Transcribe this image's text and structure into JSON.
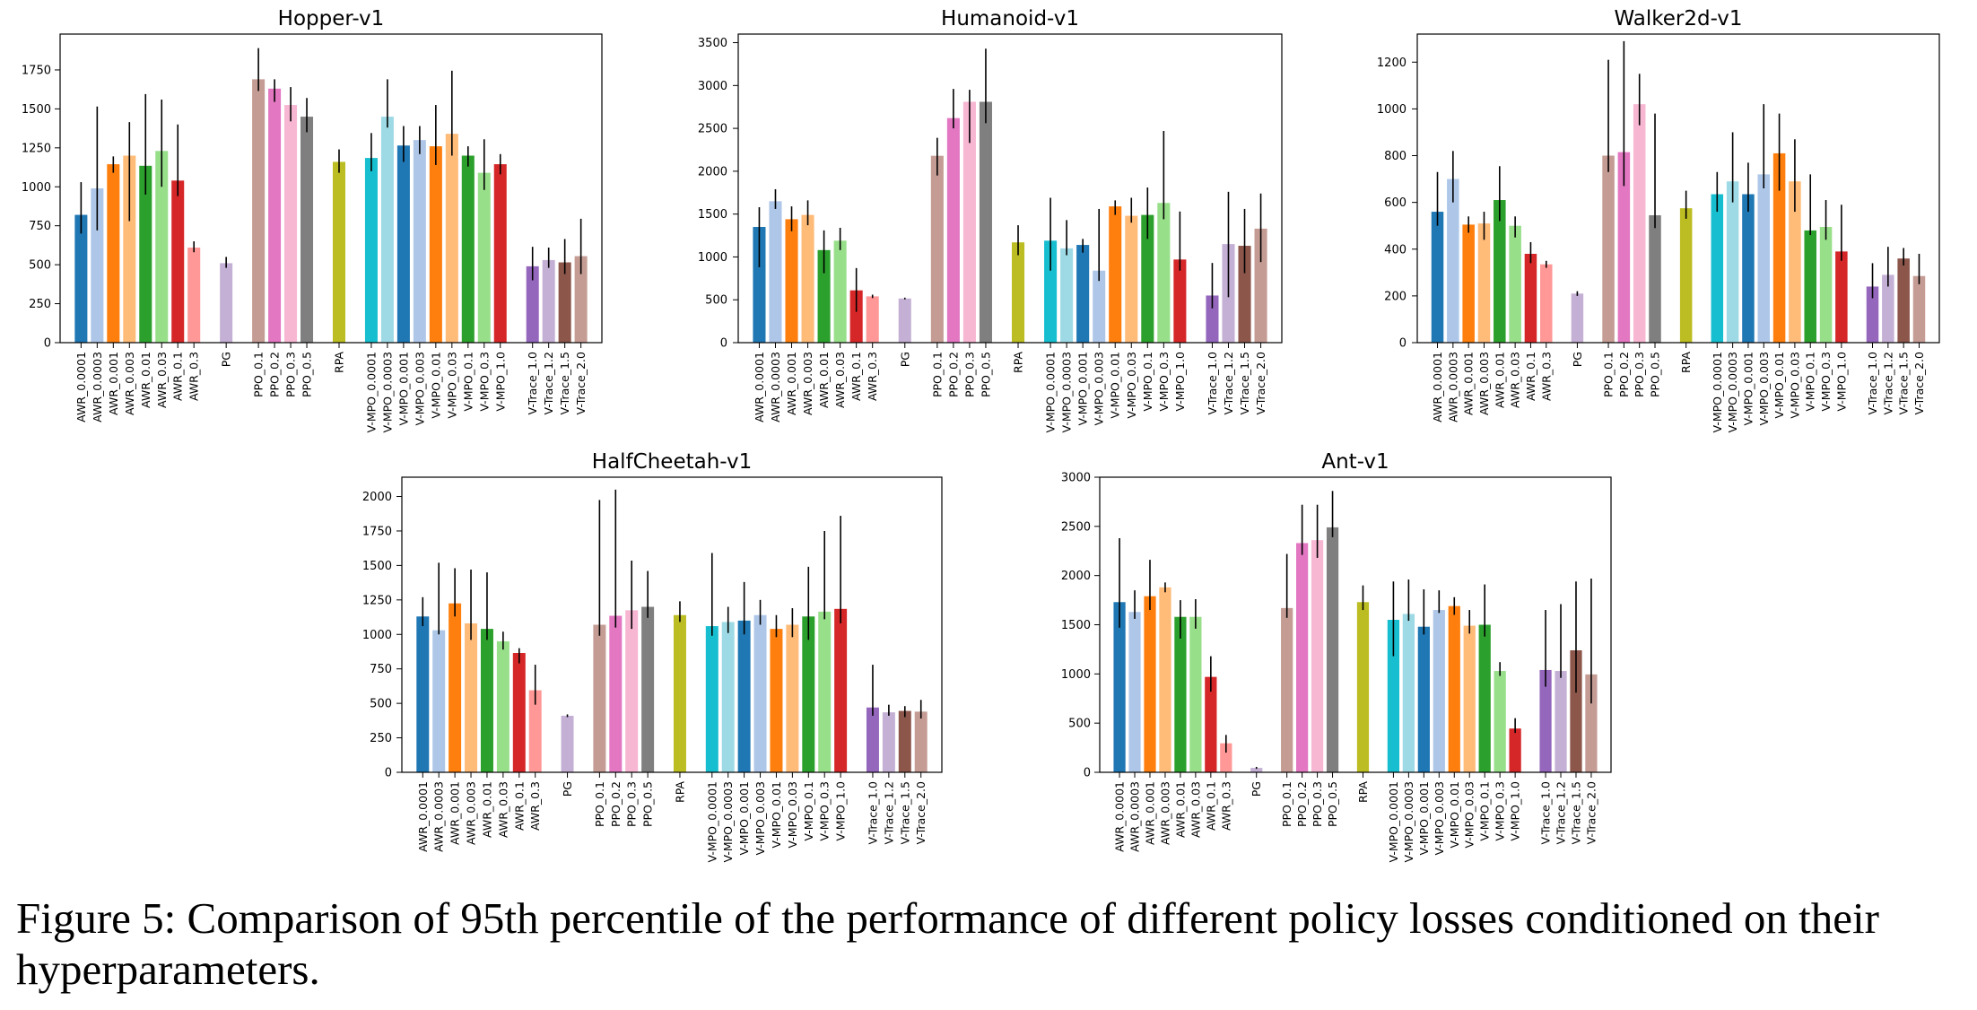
{
  "caption": "Figure 5: Comparison of 95th percentile of the performance of different policy losses conditioned on their hyperparameters.",
  "colors": {
    "AWR": [
      "#1f77b4",
      "#aec7e8",
      "#ff7f0e",
      "#ffbb78",
      "#2ca02c",
      "#98df8a",
      "#d62728",
      "#ff9896"
    ],
    "PG": [
      "#c5b0d5"
    ],
    "PPO": [
      "#c49c94",
      "#e377c2",
      "#f7b6d2",
      "#7f7f7f"
    ],
    "RPA": [
      "#bcbd22"
    ],
    "V-MPO": [
      "#17becf",
      "#9edae5",
      "#1f77b4",
      "#aec7e8",
      "#ff7f0e",
      "#ffbb78",
      "#2ca02c",
      "#98df8a",
      "#d62728"
    ],
    "V-Trace": [
      "#9467bd",
      "#c5b0d5",
      "#8c564b",
      "#c49c94"
    ]
  },
  "chart_data": [
    {
      "type": "bar",
      "title": "Hopper-v1",
      "ylim": [
        0,
        1980
      ],
      "yticks": [
        0,
        250,
        500,
        750,
        1000,
        1250,
        1500,
        1750
      ],
      "groups": [
        {
          "name": "AWR",
          "labels": [
            "AWR_0.0001",
            "AWR_0.0003",
            "AWR_0.001",
            "AWR_0.003",
            "AWR_0.01",
            "AWR_0.03",
            "AWR_0.1",
            "AWR_0.3"
          ],
          "values": [
            820,
            990,
            1145,
            1200,
            1135,
            1230,
            1040,
            610
          ],
          "err_low": [
            700,
            720,
            1090,
            780,
            950,
            1000,
            940,
            580
          ],
          "err_high": [
            1030,
            1515,
            1195,
            1415,
            1595,
            1560,
            1400,
            650
          ]
        },
        {
          "name": "PG",
          "labels": [
            "PG"
          ],
          "values": [
            510
          ],
          "err_low": [
            480
          ],
          "err_high": [
            550
          ]
        },
        {
          "name": "PPO",
          "labels": [
            "PPO_0.1",
            "PPO_0.2",
            "PPO_0.3",
            "PPO_0.5"
          ],
          "values": [
            1690,
            1630,
            1525,
            1450
          ],
          "err_low": [
            1615,
            1545,
            1420,
            1350
          ],
          "err_high": [
            1890,
            1690,
            1640,
            1570
          ]
        },
        {
          "name": "RPA",
          "labels": [
            "RPA"
          ],
          "values": [
            1160
          ],
          "err_low": [
            1090
          ],
          "err_high": [
            1240
          ]
        },
        {
          "name": "V-MPO",
          "labels": [
            "V-MPO_0.0001",
            "V-MPO_0.0003",
            "V-MPO_0.001",
            "V-MPO_0.003",
            "V-MPO_0.01",
            "V-MPO_0.03",
            "V-MPO_0.1",
            "V-MPO_0.3",
            "V-MPO_1.0"
          ],
          "values": [
            1185,
            1450,
            1265,
            1300,
            1260,
            1340,
            1200,
            1090,
            1145
          ],
          "err_low": [
            1100,
            1380,
            1160,
            1210,
            1140,
            1200,
            1130,
            980,
            1080
          ],
          "err_high": [
            1345,
            1690,
            1390,
            1390,
            1525,
            1745,
            1260,
            1305,
            1210
          ]
        },
        {
          "name": "V-Trace",
          "labels": [
            "V-Trace_1.0",
            "V-Trace_1.2",
            "V-Trace_1.5",
            "V-Trace_2.0"
          ],
          "values": [
            490,
            530,
            515,
            555
          ],
          "err_low": [
            400,
            480,
            440,
            440
          ],
          "err_high": [
            615,
            610,
            665,
            795
          ]
        }
      ]
    },
    {
      "type": "bar",
      "title": "Humanoid-v1",
      "ylim": [
        0,
        3600
      ],
      "yticks": [
        0,
        500,
        1000,
        1500,
        2000,
        2500,
        3000,
        3500
      ],
      "groups": [
        {
          "name": "AWR",
          "labels": [
            "AWR_0.0001",
            "AWR_0.0003",
            "AWR_0.001",
            "AWR_0.003",
            "AWR_0.01",
            "AWR_0.03",
            "AWR_0.1",
            "AWR_0.3"
          ],
          "values": [
            1350,
            1650,
            1440,
            1490,
            1080,
            1190,
            610,
            540
          ],
          "err_low": [
            880,
            1560,
            1300,
            1370,
            810,
            1080,
            360,
            520
          ],
          "err_high": [
            1580,
            1790,
            1590,
            1660,
            1310,
            1340,
            870,
            560
          ]
        },
        {
          "name": "PG",
          "labels": [
            "PG"
          ],
          "values": [
            515
          ],
          "err_low": [
            505
          ],
          "err_high": [
            525
          ]
        },
        {
          "name": "PPO",
          "labels": [
            "PPO_0.1",
            "PPO_0.2",
            "PPO_0.3",
            "PPO_0.5"
          ],
          "values": [
            2180,
            2620,
            2810,
            2810
          ],
          "err_low": [
            1950,
            2500,
            2330,
            2560
          ],
          "err_high": [
            2390,
            2960,
            2950,
            3430
          ]
        },
        {
          "name": "RPA",
          "labels": [
            "RPA"
          ],
          "values": [
            1170
          ],
          "err_low": [
            1020
          ],
          "err_high": [
            1370
          ]
        },
        {
          "name": "V-MPO",
          "labels": [
            "V-MPO_0.0001",
            "V-MPO_0.0003",
            "V-MPO_0.001",
            "V-MPO_0.003",
            "V-MPO_0.01",
            "V-MPO_0.03",
            "V-MPO_0.1",
            "V-MPO_0.3",
            "V-MPO_1.0"
          ],
          "values": [
            1190,
            1100,
            1140,
            840,
            1590,
            1480,
            1490,
            1630,
            970
          ],
          "err_low": [
            840,
            1020,
            1050,
            720,
            1490,
            1400,
            1210,
            1440,
            840
          ],
          "err_high": [
            1690,
            1430,
            1210,
            1560,
            1660,
            1690,
            1810,
            2470,
            1530
          ]
        },
        {
          "name": "V-Trace",
          "labels": [
            "V-Trace_1.0",
            "V-Trace_1.2",
            "V-Trace_1.5",
            "V-Trace_2.0"
          ],
          "values": [
            550,
            1150,
            1130,
            1330
          ],
          "err_low": [
            400,
            530,
            810,
            940
          ],
          "err_high": [
            930,
            1760,
            1560,
            1740
          ]
        }
      ]
    },
    {
      "type": "bar",
      "title": "Walker2d-v1",
      "ylim": [
        0,
        1320
      ],
      "yticks": [
        0,
        200,
        400,
        600,
        800,
        1000,
        1200
      ],
      "groups": [
        {
          "name": "AWR",
          "labels": [
            "AWR_0.0001",
            "AWR_0.0003",
            "AWR_0.001",
            "AWR_0.003",
            "AWR_0.01",
            "AWR_0.03",
            "AWR_0.1",
            "AWR_0.3"
          ],
          "values": [
            560,
            700,
            505,
            510,
            610,
            500,
            380,
            335
          ],
          "err_low": [
            500,
            600,
            470,
            440,
            520,
            450,
            340,
            320
          ],
          "err_high": [
            730,
            820,
            540,
            560,
            755,
            540,
            430,
            350
          ]
        },
        {
          "name": "PG",
          "labels": [
            "PG"
          ],
          "values": [
            210
          ],
          "err_low": [
            200
          ],
          "err_high": [
            220
          ]
        },
        {
          "name": "PPO",
          "labels": [
            "PPO_0.1",
            "PPO_0.2",
            "PPO_0.3",
            "PPO_0.5"
          ],
          "values": [
            800,
            815,
            1020,
            545
          ],
          "err_low": [
            730,
            670,
            930,
            490
          ],
          "err_high": [
            1210,
            1290,
            1150,
            980
          ]
        },
        {
          "name": "RPA",
          "labels": [
            "RPA"
          ],
          "values": [
            575
          ],
          "err_low": [
            530
          ],
          "err_high": [
            650
          ]
        },
        {
          "name": "V-MPO",
          "labels": [
            "V-MPO_0.0001",
            "V-MPO_0.0003",
            "V-MPO_0.001",
            "V-MPO_0.003",
            "V-MPO_0.01",
            "V-MPO_0.03",
            "V-MPO_0.1",
            "V-MPO_0.3",
            "V-MPO_1.0"
          ],
          "values": [
            635,
            690,
            635,
            720,
            810,
            690,
            480,
            495,
            390
          ],
          "err_low": [
            560,
            600,
            560,
            660,
            650,
            560,
            460,
            440,
            350
          ],
          "err_high": [
            730,
            900,
            770,
            1020,
            980,
            870,
            720,
            610,
            590
          ]
        },
        {
          "name": "V-Trace",
          "labels": [
            "V-Trace_1.0",
            "V-Trace_1.2",
            "V-Trace_1.5",
            "V-Trace_2.0"
          ],
          "values": [
            240,
            290,
            360,
            285
          ],
          "err_low": [
            190,
            240,
            330,
            250
          ],
          "err_high": [
            340,
            410,
            405,
            380
          ]
        }
      ]
    },
    {
      "type": "bar",
      "title": "HalfCheetah-v1",
      "ylim": [
        0,
        2140
      ],
      "yticks": [
        0,
        250,
        500,
        750,
        1000,
        1250,
        1500,
        1750,
        2000
      ],
      "groups": [
        {
          "name": "AWR",
          "labels": [
            "AWR_0.0001",
            "AWR_0.0003",
            "AWR_0.001",
            "AWR_0.003",
            "AWR_0.01",
            "AWR_0.03",
            "AWR_0.1",
            "AWR_0.3"
          ],
          "values": [
            1130,
            1030,
            1225,
            1080,
            1040,
            950,
            865,
            595
          ],
          "err_low": [
            1060,
            1000,
            1130,
            960,
            960,
            890,
            790,
            490
          ],
          "err_high": [
            1270,
            1520,
            1480,
            1470,
            1450,
            1020,
            900,
            780
          ]
        },
        {
          "name": "PG",
          "labels": [
            "PG"
          ],
          "values": [
            410
          ],
          "err_low": [
            400
          ],
          "err_high": [
            420
          ]
        },
        {
          "name": "PPO",
          "labels": [
            "PPO_0.1",
            "PPO_0.2",
            "PPO_0.3",
            "PPO_0.5"
          ],
          "values": [
            1070,
            1135,
            1175,
            1200
          ],
          "err_low": [
            990,
            1050,
            1040,
            1120
          ],
          "err_high": [
            1975,
            2050,
            1535,
            1460
          ]
        },
        {
          "name": "RPA",
          "labels": [
            "RPA"
          ],
          "values": [
            1140
          ],
          "err_low": [
            1090
          ],
          "err_high": [
            1240
          ]
        },
        {
          "name": "V-MPO",
          "labels": [
            "V-MPO_0.0001",
            "V-MPO_0.0003",
            "V-MPO_0.001",
            "V-MPO_0.003",
            "V-MPO_0.01",
            "V-MPO_0.03",
            "V-MPO_0.1",
            "V-MPO_0.3",
            "V-MPO_1.0"
          ],
          "values": [
            1060,
            1090,
            1100,
            1140,
            1040,
            1070,
            1130,
            1165,
            1185
          ],
          "err_low": [
            990,
            1010,
            1000,
            1070,
            980,
            980,
            960,
            1110,
            1080
          ],
          "err_high": [
            1590,
            1200,
            1380,
            1250,
            1140,
            1190,
            1490,
            1750,
            1860
          ]
        },
        {
          "name": "V-Trace",
          "labels": [
            "V-Trace_1.0",
            "V-Trace_1.2",
            "V-Trace_1.5",
            "V-Trace_2.0"
          ],
          "values": [
            470,
            435,
            445,
            440
          ],
          "err_low": [
            410,
            410,
            400,
            390
          ],
          "err_high": [
            780,
            490,
            480,
            525
          ]
        }
      ]
    },
    {
      "type": "bar",
      "title": "Ant-v1",
      "ylim": [
        0,
        3000
      ],
      "yticks": [
        0,
        500,
        1000,
        1500,
        2000,
        2500,
        3000
      ],
      "groups": [
        {
          "name": "AWR",
          "labels": [
            "AWR_0.0001",
            "AWR_0.0003",
            "AWR_0.001",
            "AWR_0.003",
            "AWR_0.01",
            "AWR_0.03",
            "AWR_0.1",
            "AWR_0.3"
          ],
          "values": [
            1730,
            1630,
            1790,
            1880,
            1580,
            1580,
            970,
            295
          ],
          "err_low": [
            1470,
            1560,
            1650,
            1830,
            1360,
            1460,
            820,
            200
          ],
          "err_high": [
            2380,
            1850,
            2160,
            1930,
            1750,
            1760,
            1180,
            380
          ]
        },
        {
          "name": "PG",
          "labels": [
            "PG"
          ],
          "values": [
            45
          ],
          "err_low": [
            35
          ],
          "err_high": [
            55
          ]
        },
        {
          "name": "PPO",
          "labels": [
            "PPO_0.1",
            "PPO_0.2",
            "PPO_0.3",
            "PPO_0.5"
          ],
          "values": [
            1670,
            2330,
            2360,
            2490
          ],
          "err_low": [
            1570,
            2210,
            2180,
            2390
          ],
          "err_high": [
            2220,
            2720,
            2720,
            2860
          ]
        },
        {
          "name": "RPA",
          "labels": [
            "RPA"
          ],
          "values": [
            1730
          ],
          "err_low": [
            1650
          ],
          "err_high": [
            1900
          ]
        },
        {
          "name": "V-MPO",
          "labels": [
            "V-MPO_0.0001",
            "V-MPO_0.0003",
            "V-MPO_0.001",
            "V-MPO_0.003",
            "V-MPO_0.01",
            "V-MPO_0.03",
            "V-MPO_0.1",
            "V-MPO_0.3",
            "V-MPO_1.0"
          ],
          "values": [
            1550,
            1610,
            1480,
            1650,
            1690,
            1490,
            1500,
            1030,
            445
          ],
          "err_low": [
            1180,
            1540,
            1400,
            1620,
            1600,
            1410,
            1380,
            980,
            400
          ],
          "err_high": [
            1940,
            1960,
            1860,
            1850,
            1780,
            1650,
            1910,
            1120,
            550
          ]
        },
        {
          "name": "V-Trace",
          "labels": [
            "V-Trace_1.0",
            "V-Trace_1.2",
            "V-Trace_1.5",
            "V-Trace_2.0"
          ],
          "values": [
            1040,
            1030,
            1240,
            995
          ],
          "err_low": [
            870,
            960,
            810,
            700
          ],
          "err_high": [
            1650,
            1710,
            1940,
            1970
          ]
        }
      ]
    }
  ]
}
